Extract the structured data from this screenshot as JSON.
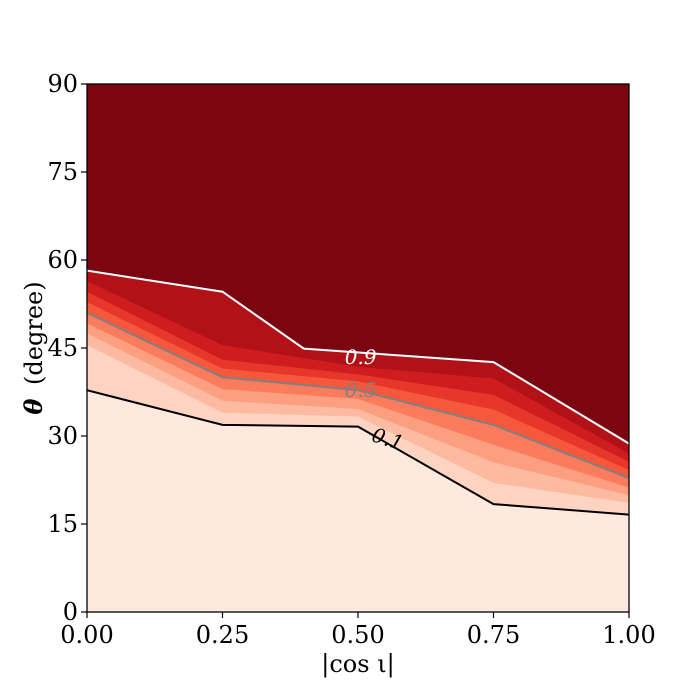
{
  "chart_data": {
    "type": "contour",
    "xlabel": "|cos ι|",
    "ylabel_symbol": "θ",
    "ylabel_text": "(degree)",
    "xlim": [
      0.0,
      1.0
    ],
    "ylim": [
      0,
      90
    ],
    "xticks": [
      0.0,
      0.25,
      0.5,
      0.75,
      1.0
    ],
    "xtick_labels": [
      "0.00",
      "0.25",
      "0.50",
      "0.75",
      "1.00"
    ],
    "yticks": [
      0,
      15,
      30,
      45,
      60,
      75,
      90
    ],
    "ytick_labels": [
      "0",
      "15",
      "30",
      "45",
      "60",
      "75",
      "90"
    ],
    "colormap": "Reds",
    "band_colors": [
      "#fee9df",
      "#fdd3c1",
      "#fcbba1",
      "#fc9f81",
      "#fb7c5c",
      "#f6583e",
      "#e7362a",
      "#cf1c1f",
      "#b11117",
      "#7b0612"
    ],
    "levels": [
      {
        "value": 0.1,
        "x": [
          0.0,
          0.25,
          0.5,
          0.75,
          1.0
        ],
        "theta": [
          37.8,
          31.9,
          31.6,
          18.4,
          16.6
        ]
      },
      {
        "value": 0.2,
        "x": [
          0.0,
          0.25,
          0.5,
          0.75,
          1.0
        ],
        "theta": [
          45.5,
          34.0,
          33.3,
          22.0,
          18.6
        ]
      },
      {
        "value": 0.3,
        "x": [
          0.0,
          0.25,
          0.5,
          0.75,
          1.0
        ],
        "theta": [
          47.5,
          36.0,
          34.6,
          25.5,
          19.9
        ]
      },
      {
        "value": 0.4,
        "x": [
          0.0,
          0.25,
          0.5,
          0.75,
          1.0
        ],
        "theta": [
          49.2,
          38.0,
          36.3,
          28.5,
          21.2
        ]
      },
      {
        "value": 0.5,
        "x": [
          0.0,
          0.25,
          0.5,
          0.75,
          1.0
        ],
        "theta": [
          51.0,
          40.0,
          37.8,
          31.9,
          22.8
        ]
      },
      {
        "value": 0.6,
        "x": [
          0.0,
          0.25,
          0.5,
          0.75,
          1.0
        ],
        "theta": [
          52.8,
          41.5,
          39.3,
          34.5,
          24.2
        ]
      },
      {
        "value": 0.7,
        "x": [
          0.0,
          0.25,
          0.5,
          0.75,
          1.0
        ],
        "theta": [
          54.6,
          43.0,
          40.5,
          37.0,
          25.6
        ]
      },
      {
        "value": 0.8,
        "x": [
          0.0,
          0.25,
          0.5,
          0.75,
          1.0
        ],
        "theta": [
          56.4,
          45.5,
          41.8,
          39.8,
          27.0
        ]
      },
      {
        "value": 0.9,
        "x": [
          0.0,
          0.25,
          0.4,
          0.75,
          1.0
        ],
        "theta": [
          58.2,
          54.6,
          44.9,
          42.6,
          28.7
        ]
      }
    ],
    "line_levels": [
      0.1,
      0.5,
      0.9
    ],
    "line_colors": {
      "0.1": "#000000",
      "0.5": "#808080",
      "0.9": "#ffffff"
    },
    "contour_labels": [
      {
        "text": "0.9",
        "x": 0.505,
        "theta": 43.5,
        "color": "#ffffff"
      },
      {
        "text": "0.5",
        "x": 0.505,
        "theta": 37.8,
        "color": "#808080"
      },
      {
        "text": "0.1",
        "x": 0.555,
        "theta": 29.5,
        "color": "#000000"
      }
    ]
  }
}
